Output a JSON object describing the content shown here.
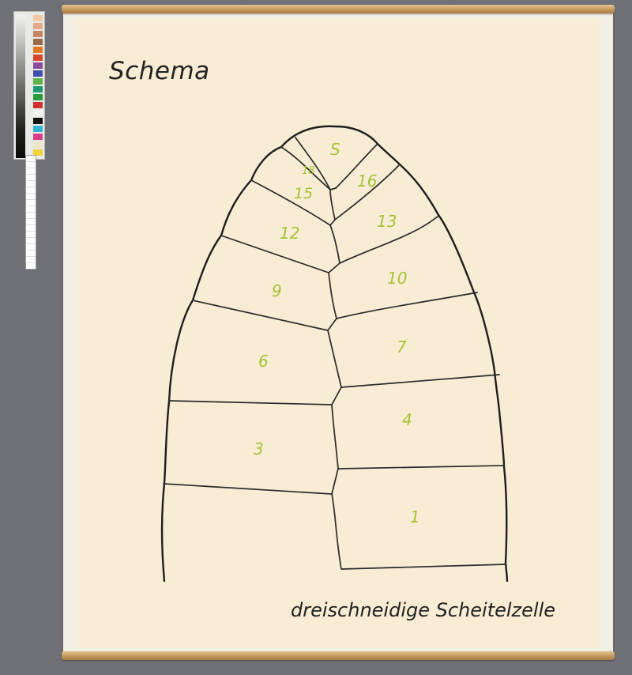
{
  "title": "Schema",
  "caption": "dreischneidige Scheitelzelle",
  "colors": {
    "outline": "#1f1f1f",
    "label": "#a6c436",
    "paper": "#f8ecd4",
    "background": "#6f7176",
    "rod": "#c59a5f"
  },
  "cells": [
    {
      "label": "S"
    },
    {
      "label": "18"
    },
    {
      "label": "16"
    },
    {
      "label": "15"
    },
    {
      "label": "13"
    },
    {
      "label": "12"
    },
    {
      "label": "10"
    },
    {
      "label": "9"
    },
    {
      "label": "7"
    },
    {
      "label": "6"
    },
    {
      "label": "4"
    },
    {
      "label": "3"
    },
    {
      "label": "1"
    }
  ]
}
